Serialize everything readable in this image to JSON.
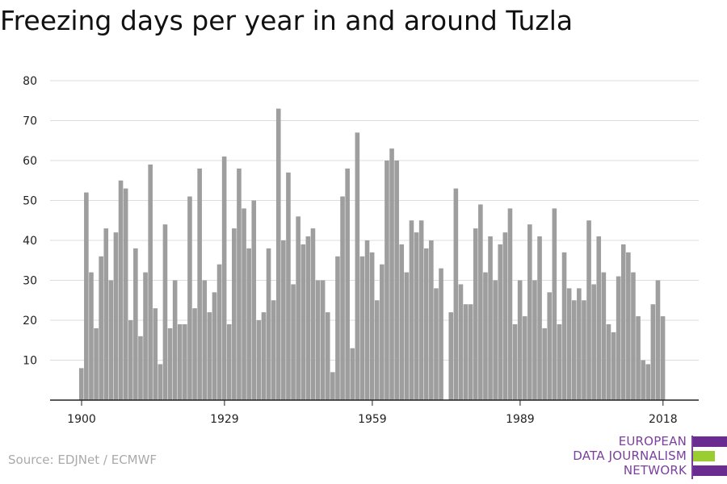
{
  "header": {
    "title": "Freezing days per year in and around Tuzla"
  },
  "footer": {
    "source": "Source: EDJNet / ECMWF"
  },
  "logo": {
    "line1": "EUROPEAN",
    "line2": "DATA JOURNALISM",
    "line3": "NETWORK"
  },
  "colors": {
    "bar": "#9e9e9e",
    "grid": "#dddddd",
    "axis": "#222222",
    "brand_purple": "#6a2c91",
    "brand_green": "#9acd32"
  },
  "chart_data": {
    "type": "bar",
    "title": "Freezing days per year in and around Tuzla",
    "xlabel": "",
    "ylabel": "",
    "ylim": [
      0,
      80
    ],
    "yticks": [
      10,
      20,
      30,
      40,
      50,
      60,
      70,
      80
    ],
    "xticks": [
      1900,
      1929,
      1959,
      1989,
      2018
    ],
    "grid": true,
    "start_year": 1900,
    "values": [
      8,
      52,
      32,
      18,
      36,
      43,
      30,
      42,
      55,
      53,
      20,
      38,
      16,
      32,
      59,
      23,
      9,
      44,
      18,
      30,
      19,
      19,
      51,
      23,
      58,
      30,
      22,
      27,
      34,
      61,
      19,
      43,
      58,
      48,
      38,
      50,
      20,
      22,
      38,
      25,
      73,
      40,
      57,
      29,
      46,
      39,
      41,
      43,
      30,
      30,
      22,
      7,
      36,
      51,
      58,
      13,
      67,
      36,
      40,
      37,
      25,
      34,
      60,
      63,
      60,
      39,
      32,
      45,
      42,
      45,
      38,
      40,
      28,
      33,
      0,
      22,
      53,
      29,
      24,
      24,
      43,
      49,
      32,
      41,
      30,
      39,
      42,
      48,
      19,
      30,
      21,
      44,
      30,
      41,
      18,
      27,
      48,
      19,
      37,
      28,
      25,
      28,
      25,
      45,
      29,
      41,
      32,
      19,
      17,
      31,
      39,
      37,
      32,
      21,
      10,
      9,
      24,
      30,
      21
    ]
  }
}
